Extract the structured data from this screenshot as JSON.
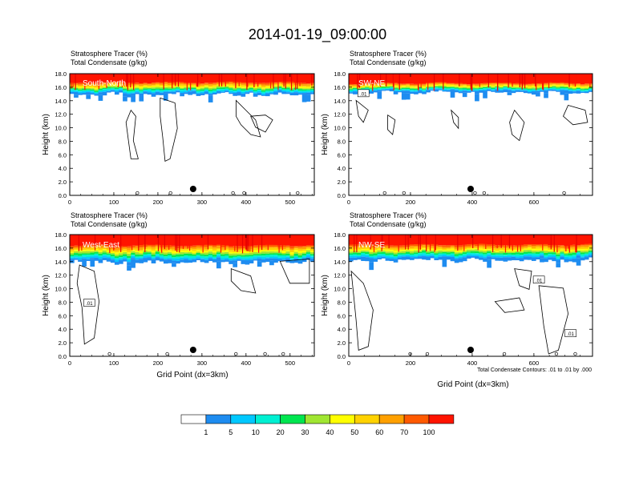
{
  "figure": {
    "title": "2014-01-19_09:00:00",
    "footnote": "Total Condensate Contours: .01 to .01 by .000"
  },
  "colors": {
    "bins": [
      "#ffffff",
      "#1e8cf0",
      "#00c8ff",
      "#00f0d2",
      "#00e650",
      "#a0e632",
      "#ffff00",
      "#ffd200",
      "#ffa000",
      "#ff5a00",
      "#ff1400"
    ],
    "frame": "#000000",
    "contour": "#000000"
  },
  "colorbar": {
    "labels": [
      "1",
      "5",
      "10",
      "20",
      "30",
      "40",
      "50",
      "60",
      "70",
      "100"
    ]
  },
  "chart_data": [
    {
      "type": "heatmap",
      "name": "South-North",
      "label_lines": [
        "Stratosphere Tracer   (%)",
        "Total Condensate   (g/kg)"
      ],
      "ylabel": "Height (km)",
      "xlabel": "",
      "xlim": [
        0,
        555
      ],
      "ylim": [
        0,
        18
      ],
      "xticks": [
        0,
        100,
        200,
        300,
        400,
        500
      ],
      "yticks": [
        "0.0",
        "2.0",
        "4.0",
        "6.0",
        "8.0",
        "10.0",
        "12.0",
        "14.0",
        "16.0",
        "18.0"
      ],
      "marker_x": 280,
      "layer_base_km": 15.1,
      "layer_top_km": 16.7,
      "contour_labels": [],
      "band_scale": 1.0
    },
    {
      "type": "heatmap",
      "name": "SW-NE",
      "label_lines": [
        "Stratosphere Tracer   (%)",
        "Total Condensate   (g/kg)"
      ],
      "ylabel": "Height (km)",
      "xlabel": "",
      "xlim": [
        0,
        790
      ],
      "ylim": [
        0,
        18
      ],
      "xticks": [
        0,
        200,
        400,
        600
      ],
      "yticks": [
        "0.0",
        "2.0",
        "4.0",
        "6.0",
        "8.0",
        "10.0",
        "12.0",
        "14.0",
        "16.0",
        "18.0"
      ],
      "marker_x": 395,
      "layer_base_km": 15.2,
      "layer_top_km": 16.6,
      "contour_labels": [
        ".01"
      ],
      "band_scale": 0.85
    },
    {
      "type": "heatmap",
      "name": "West-East",
      "label_lines": [
        "Stratosphere Tracer   (%)",
        "Total Condensate   (g/kg)"
      ],
      "ylabel": "Height (km)",
      "xlabel": "Grid Point (dx=3km)",
      "xlim": [
        0,
        555
      ],
      "ylim": [
        0,
        18
      ],
      "xticks": [
        0,
        100,
        200,
        300,
        400,
        500
      ],
      "yticks": [
        "0.0",
        "2.0",
        "4.0",
        "6.0",
        "8.0",
        "10.0",
        "12.0",
        "14.0",
        "16.0",
        "18.0"
      ],
      "marker_x": 280,
      "layer_base_km": 14.4,
      "layer_top_km": 16.4,
      "contour_labels": [
        ".01"
      ],
      "band_scale": 1.1
    },
    {
      "type": "heatmap",
      "name": "NW-SE",
      "label_lines": [
        "Stratosphere Tracer   (%)",
        "Total Condensate   (g/kg)"
      ],
      "ylabel": "Height (km)",
      "xlabel": "Grid Point (dx=3km)",
      "xlim": [
        0,
        790
      ],
      "ylim": [
        0,
        18
      ],
      "xticks": [
        0,
        200,
        400,
        600
      ],
      "yticks": [
        "0.0",
        "2.0",
        "4.0",
        "6.0",
        "8.0",
        "10.0",
        "12.0",
        "14.0",
        "16.0",
        "18.0"
      ],
      "marker_x": 395,
      "layer_base_km": 14.5,
      "layer_top_km": 16.5,
      "contour_labels": [
        ".01",
        ".01"
      ],
      "band_scale": 1.0
    }
  ]
}
